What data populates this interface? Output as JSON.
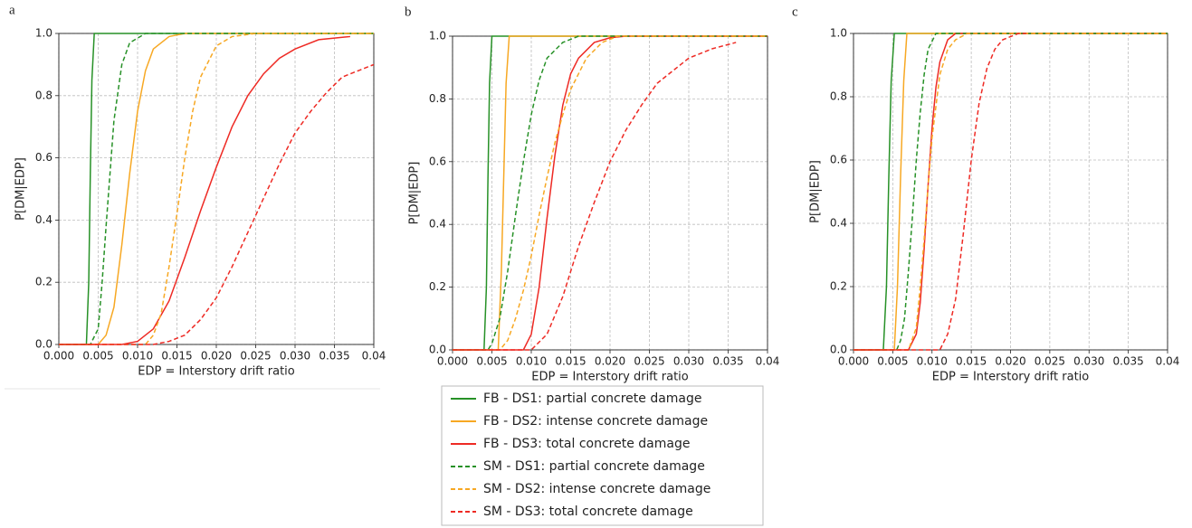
{
  "chart_data": [
    {
      "type": "line",
      "label": "a",
      "xlabel": "EDP = Interstory drift ratio",
      "ylabel": "P[DM|EDP]",
      "xlim": [
        0,
        0.04
      ],
      "ylim": [
        0,
        1
      ],
      "grid": true,
      "xticks": [
        {
          "value": 0,
          "label": "0.000"
        },
        0.005,
        {
          "value": 0.01,
          "label": "0.010"
        },
        0.015,
        {
          "value": 0.02,
          "label": "0.020"
        },
        0.025,
        {
          "value": 0.03,
          "label": "0.030"
        },
        0.035,
        0.04
      ],
      "yticks": [
        {
          "value": 0,
          "label": "0.0"
        },
        0.2,
        0.4,
        0.6,
        0.8,
        {
          "value": 1,
          "label": "1.0"
        }
      ],
      "series": [
        {
          "color": "#279127",
          "dash": false,
          "x": [
            0,
            0.0035,
            0.0038,
            0.004,
            0.0042,
            0.0045,
            0.04
          ],
          "values": [
            0,
            0,
            0.2,
            0.55,
            0.85,
            1,
            1
          ]
        },
        {
          "color": "#f7a823",
          "dash": false,
          "x": [
            0,
            0.005,
            0.006,
            0.007,
            0.008,
            0.009,
            0.01,
            0.011,
            0.012,
            0.014,
            0.016,
            0.04
          ],
          "values": [
            0,
            0,
            0.03,
            0.12,
            0.32,
            0.55,
            0.75,
            0.88,
            0.95,
            0.99,
            1,
            1
          ]
        },
        {
          "color": "#ee2a24",
          "dash": false,
          "x": [
            0,
            0.008,
            0.01,
            0.012,
            0.014,
            0.016,
            0.018,
            0.02,
            0.022,
            0.024,
            0.026,
            0.028,
            0.03,
            0.033,
            0.037
          ],
          "values": [
            0,
            0,
            0.01,
            0.05,
            0.14,
            0.28,
            0.43,
            0.57,
            0.7,
            0.8,
            0.87,
            0.92,
            0.95,
            0.98,
            0.99
          ]
        },
        {
          "color": "#279127",
          "dash": true,
          "x": [
            0,
            0.004,
            0.005,
            0.0055,
            0.006,
            0.0065,
            0.007,
            0.008,
            0.009,
            0.011,
            0.04
          ],
          "values": [
            0,
            0,
            0.05,
            0.2,
            0.38,
            0.55,
            0.72,
            0.9,
            0.97,
            1,
            1
          ]
        },
        {
          "color": "#f7a823",
          "dash": true,
          "x": [
            0,
            0.011,
            0.012,
            0.013,
            0.014,
            0.015,
            0.016,
            0.017,
            0.018,
            0.02,
            0.022,
            0.025,
            0.04
          ],
          "values": [
            0,
            0,
            0.03,
            0.1,
            0.25,
            0.42,
            0.6,
            0.75,
            0.86,
            0.96,
            0.99,
            1,
            1
          ]
        },
        {
          "color": "#ee2a24",
          "dash": true,
          "x": [
            0,
            0.012,
            0.014,
            0.016,
            0.018,
            0.02,
            0.022,
            0.024,
            0.026,
            0.028,
            0.03,
            0.032,
            0.034,
            0.036,
            0.038,
            0.04
          ],
          "values": [
            0,
            0,
            0.01,
            0.03,
            0.08,
            0.15,
            0.25,
            0.36,
            0.47,
            0.58,
            0.68,
            0.75,
            0.81,
            0.86,
            0.88,
            0.9
          ]
        }
      ]
    },
    {
      "type": "line",
      "label": "b",
      "xlabel": "EDP = Interstory drift ratio",
      "ylabel": "P[DM|EDP]",
      "xlim": [
        0,
        0.04
      ],
      "ylim": [
        0,
        1
      ],
      "grid": true,
      "legend": "below",
      "xticks": [
        {
          "value": 0,
          "label": "0.000"
        },
        0.005,
        {
          "value": 0.01,
          "label": "0.010"
        },
        0.015,
        {
          "value": 0.02,
          "label": "0.020"
        },
        0.025,
        {
          "value": 0.03,
          "label": "0.030"
        },
        0.035,
        0.04
      ],
      "yticks": [
        {
          "value": 0,
          "label": "0.0"
        },
        0.2,
        0.4,
        0.6,
        0.8,
        {
          "value": 1,
          "label": "1.0"
        }
      ],
      "series": [
        {
          "name": "FB -  DS1: partial concrete damage",
          "color": "#279127",
          "dash": false,
          "x": [
            0,
            0.004,
            0.0043,
            0.0045,
            0.0047,
            0.005,
            0.04
          ],
          "values": [
            0,
            0,
            0.2,
            0.55,
            0.85,
            1,
            1
          ]
        },
        {
          "name": "FB -  DS2: intense concrete damage",
          "color": "#f7a823",
          "dash": false,
          "x": [
            0,
            0.0058,
            0.0062,
            0.0065,
            0.0068,
            0.0072,
            0.04
          ],
          "values": [
            0,
            0,
            0.25,
            0.55,
            0.85,
            1,
            1
          ]
        },
        {
          "name": "FB -  DS3: total concrete damage",
          "color": "#ee2a24",
          "dash": false,
          "x": [
            0,
            0.009,
            0.01,
            0.011,
            0.012,
            0.013,
            0.014,
            0.015,
            0.016,
            0.018,
            0.02,
            0.022,
            0.04
          ],
          "values": [
            0,
            0,
            0.05,
            0.2,
            0.42,
            0.62,
            0.78,
            0.88,
            0.93,
            0.98,
            0.995,
            1,
            1
          ]
        },
        {
          "name": "SM -  DS1: partial concrete damage",
          "color": "#279127",
          "dash": true,
          "x": [
            0,
            0.0045,
            0.005,
            0.006,
            0.007,
            0.008,
            0.009,
            0.01,
            0.011,
            0.012,
            0.014,
            0.016,
            0.04
          ],
          "values": [
            0,
            0,
            0.02,
            0.1,
            0.25,
            0.43,
            0.6,
            0.75,
            0.86,
            0.93,
            0.98,
            1,
            1
          ]
        },
        {
          "name": "SM -  DS2: intense concrete damage",
          "color": "#f7a823",
          "dash": true,
          "x": [
            0,
            0.006,
            0.007,
            0.008,
            0.009,
            0.01,
            0.011,
            0.012,
            0.013,
            0.014,
            0.015,
            0.017,
            0.019,
            0.021,
            0.04
          ],
          "values": [
            0,
            0,
            0.03,
            0.1,
            0.19,
            0.3,
            0.43,
            0.55,
            0.66,
            0.75,
            0.83,
            0.93,
            0.98,
            1,
            1
          ]
        },
        {
          "name": "SM -  DS3: total concrete damage",
          "color": "#ee2a24",
          "dash": true,
          "x": [
            0,
            0.01,
            0.012,
            0.014,
            0.016,
            0.018,
            0.02,
            0.022,
            0.024,
            0.026,
            0.028,
            0.03,
            0.033,
            0.036
          ],
          "values": [
            0,
            0,
            0.05,
            0.17,
            0.33,
            0.47,
            0.6,
            0.7,
            0.78,
            0.85,
            0.89,
            0.93,
            0.96,
            0.98
          ]
        }
      ]
    },
    {
      "type": "line",
      "label": "c",
      "xlabel": "EDP = Interstory drift ratio",
      "ylabel": "P[DM|EDP]",
      "xlim": [
        0,
        0.04
      ],
      "ylim": [
        0,
        1
      ],
      "grid": true,
      "xticks": [
        {
          "value": 0,
          "label": "0.000"
        },
        0.005,
        {
          "value": 0.01,
          "label": "0.010"
        },
        0.015,
        {
          "value": 0.02,
          "label": "0.020"
        },
        0.025,
        {
          "value": 0.03,
          "label": "0.030"
        },
        0.035,
        0.04
      ],
      "yticks": [
        {
          "value": 0,
          "label": "0.0"
        },
        0.2,
        0.4,
        0.6,
        0.8,
        {
          "value": 1,
          "label": "1.0"
        }
      ],
      "series": [
        {
          "color": "#279127",
          "dash": false,
          "x": [
            0,
            0.0038,
            0.0042,
            0.0045,
            0.0048,
            0.0052,
            0.04
          ],
          "values": [
            0,
            0,
            0.2,
            0.55,
            0.85,
            1,
            1
          ]
        },
        {
          "color": "#f7a823",
          "dash": false,
          "x": [
            0,
            0.0052,
            0.0056,
            0.006,
            0.0064,
            0.0068,
            0.04
          ],
          "values": [
            0,
            0,
            0.2,
            0.55,
            0.85,
            1,
            1
          ]
        },
        {
          "color": "#ee2a24",
          "dash": false,
          "x": [
            0,
            0.007,
            0.008,
            0.0085,
            0.009,
            0.0095,
            0.01,
            0.0105,
            0.011,
            0.012,
            0.013,
            0.04
          ],
          "values": [
            0,
            0,
            0.05,
            0.15,
            0.32,
            0.52,
            0.7,
            0.83,
            0.91,
            0.98,
            1,
            1
          ]
        },
        {
          "color": "#279127",
          "dash": true,
          "x": [
            0,
            0.0055,
            0.006,
            0.0065,
            0.007,
            0.0075,
            0.008,
            0.0085,
            0.009,
            0.0095,
            0.0105,
            0.04
          ],
          "values": [
            0,
            0,
            0.03,
            0.1,
            0.25,
            0.42,
            0.6,
            0.75,
            0.87,
            0.95,
            1,
            1
          ]
        },
        {
          "color": "#f7a823",
          "dash": true,
          "x": [
            0,
            0.007,
            0.008,
            0.0085,
            0.009,
            0.0095,
            0.01,
            0.011,
            0.012,
            0.013,
            0.0145,
            0.04
          ],
          "values": [
            0,
            0,
            0.07,
            0.2,
            0.35,
            0.52,
            0.67,
            0.87,
            0.95,
            0.98,
            1,
            1
          ]
        },
        {
          "color": "#ee2a24",
          "dash": true,
          "x": [
            0,
            0.011,
            0.012,
            0.013,
            0.014,
            0.015,
            0.016,
            0.017,
            0.018,
            0.019,
            0.021,
            0.022
          ],
          "values": [
            0,
            0,
            0.05,
            0.16,
            0.37,
            0.6,
            0.78,
            0.89,
            0.95,
            0.98,
            1,
            1
          ]
        }
      ]
    }
  ]
}
